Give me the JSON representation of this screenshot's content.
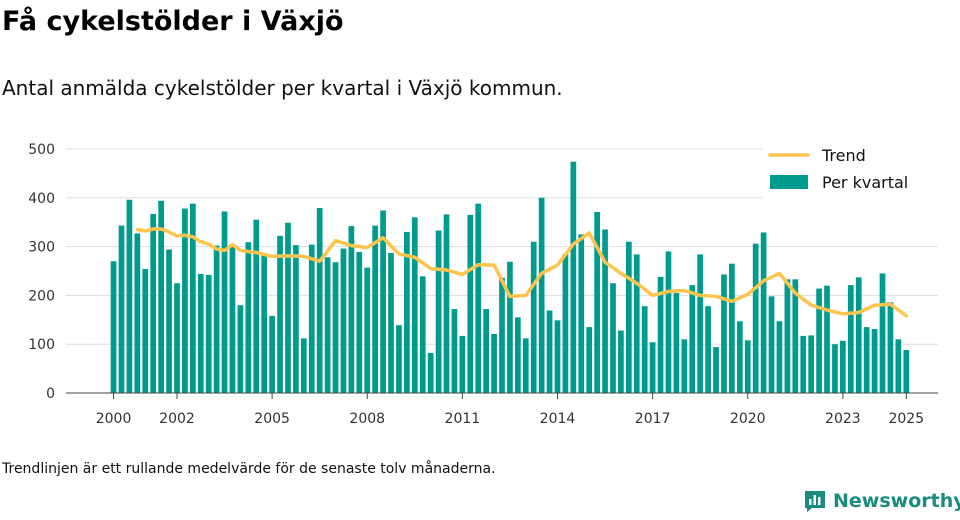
{
  "header": {
    "title": "Få cykelstölder i Växjö",
    "subtitle": "Antal anmälda cykelstölder per kvartal i Växjö kommun."
  },
  "footer": {
    "note": "Trendlinjen är ett rullande medelvärde för de senaste tolv månaderna.",
    "brand": "Newsworthy"
  },
  "colors": {
    "bars": "#009b8f",
    "trend": "#ffc44d",
    "grid": "#dddddd",
    "brand": "#1a8c7f"
  },
  "chart_data": {
    "type": "bar",
    "title": "",
    "xlabel": "",
    "ylabel": "",
    "ylim": [
      0,
      500
    ],
    "xlim": [
      1998.5,
      2026.0
    ],
    "grid": true,
    "legend_position": "top-right",
    "y_ticks": [
      0,
      100,
      200,
      300,
      400,
      500
    ],
    "x_ticks": [
      {
        "value": 2000.0,
        "label": "2000"
      },
      {
        "value": 2002.0,
        "label": "2002"
      },
      {
        "value": 2005.0,
        "label": "2005"
      },
      {
        "value": 2008.0,
        "label": "2008"
      },
      {
        "value": 2011.0,
        "label": "2011"
      },
      {
        "value": 2014.0,
        "label": "2014"
      },
      {
        "value": 2017.0,
        "label": "2017"
      },
      {
        "value": 2020.0,
        "label": "2020"
      },
      {
        "value": 2023.0,
        "label": "2023"
      },
      {
        "value": 2025.0,
        "label": "2025"
      }
    ],
    "x_start": 2000.0,
    "x_step": 0.25,
    "series": [
      {
        "name": "Per kvartal",
        "type": "bar",
        "values": [
          270,
          343,
          396,
          327,
          254,
          367,
          394,
          294,
          225,
          378,
          388,
          244,
          242,
          302,
          372,
          302,
          180,
          309,
          355,
          284,
          158,
          322,
          349,
          303,
          112,
          304,
          379,
          278,
          268,
          296,
          342,
          289,
          257,
          343,
          374,
          287,
          139,
          330,
          360,
          239,
          82,
          333,
          366,
          172,
          117,
          365,
          388,
          172,
          121,
          236,
          269,
          155,
          112,
          310,
          400,
          169,
          149,
          285,
          474,
          325,
          135,
          371,
          335,
          225,
          128,
          310,
          284,
          178,
          104,
          238,
          290,
          205,
          110,
          221,
          284,
          178,
          94,
          243,
          265,
          147,
          108,
          306,
          329,
          198,
          147,
          233,
          233,
          117,
          118,
          214,
          220,
          100,
          107,
          221,
          237,
          135,
          131,
          245,
          186,
          110,
          88
        ]
      },
      {
        "name": "Trend",
        "type": "line",
        "x": [
          2000.75,
          2001.0,
          2001.25,
          2001.5,
          2001.75,
          2002.0,
          2002.25,
          2002.5,
          2002.75,
          2003.0,
          2003.25,
          2003.5,
          2003.75,
          2004.0,
          2004.5,
          2005.0,
          2005.5,
          2006.0,
          2006.5,
          2007.0,
          2007.5,
          2008.0,
          2008.5,
          2009.0,
          2009.5,
          2010.0,
          2010.5,
          2011.0,
          2011.5,
          2012.0,
          2012.5,
          2013.0,
          2013.5,
          2014.0,
          2014.5,
          2015.0,
          2015.5,
          2016.0,
          2016.5,
          2017.0,
          2017.5,
          2018.0,
          2018.5,
          2019.0,
          2019.5,
          2020.0,
          2020.5,
          2021.0,
          2021.5,
          2022.0,
          2022.5,
          2023.0,
          2023.5,
          2024.0,
          2024.5,
          2025.0
        ],
        "values": [
          335,
          332,
          336,
          336,
          330,
          322,
          323,
          320,
          310,
          305,
          295,
          292,
          304,
          292,
          288,
          280,
          281,
          280,
          270,
          312,
          302,
          298,
          318,
          285,
          278,
          255,
          252,
          243,
          263,
          262,
          198,
          200,
          245,
          262,
          305,
          328,
          268,
          245,
          225,
          200,
          208,
          210,
          200,
          198,
          188,
          202,
          230,
          245,
          205,
          180,
          170,
          162,
          165,
          180,
          182,
          158
        ]
      }
    ]
  }
}
